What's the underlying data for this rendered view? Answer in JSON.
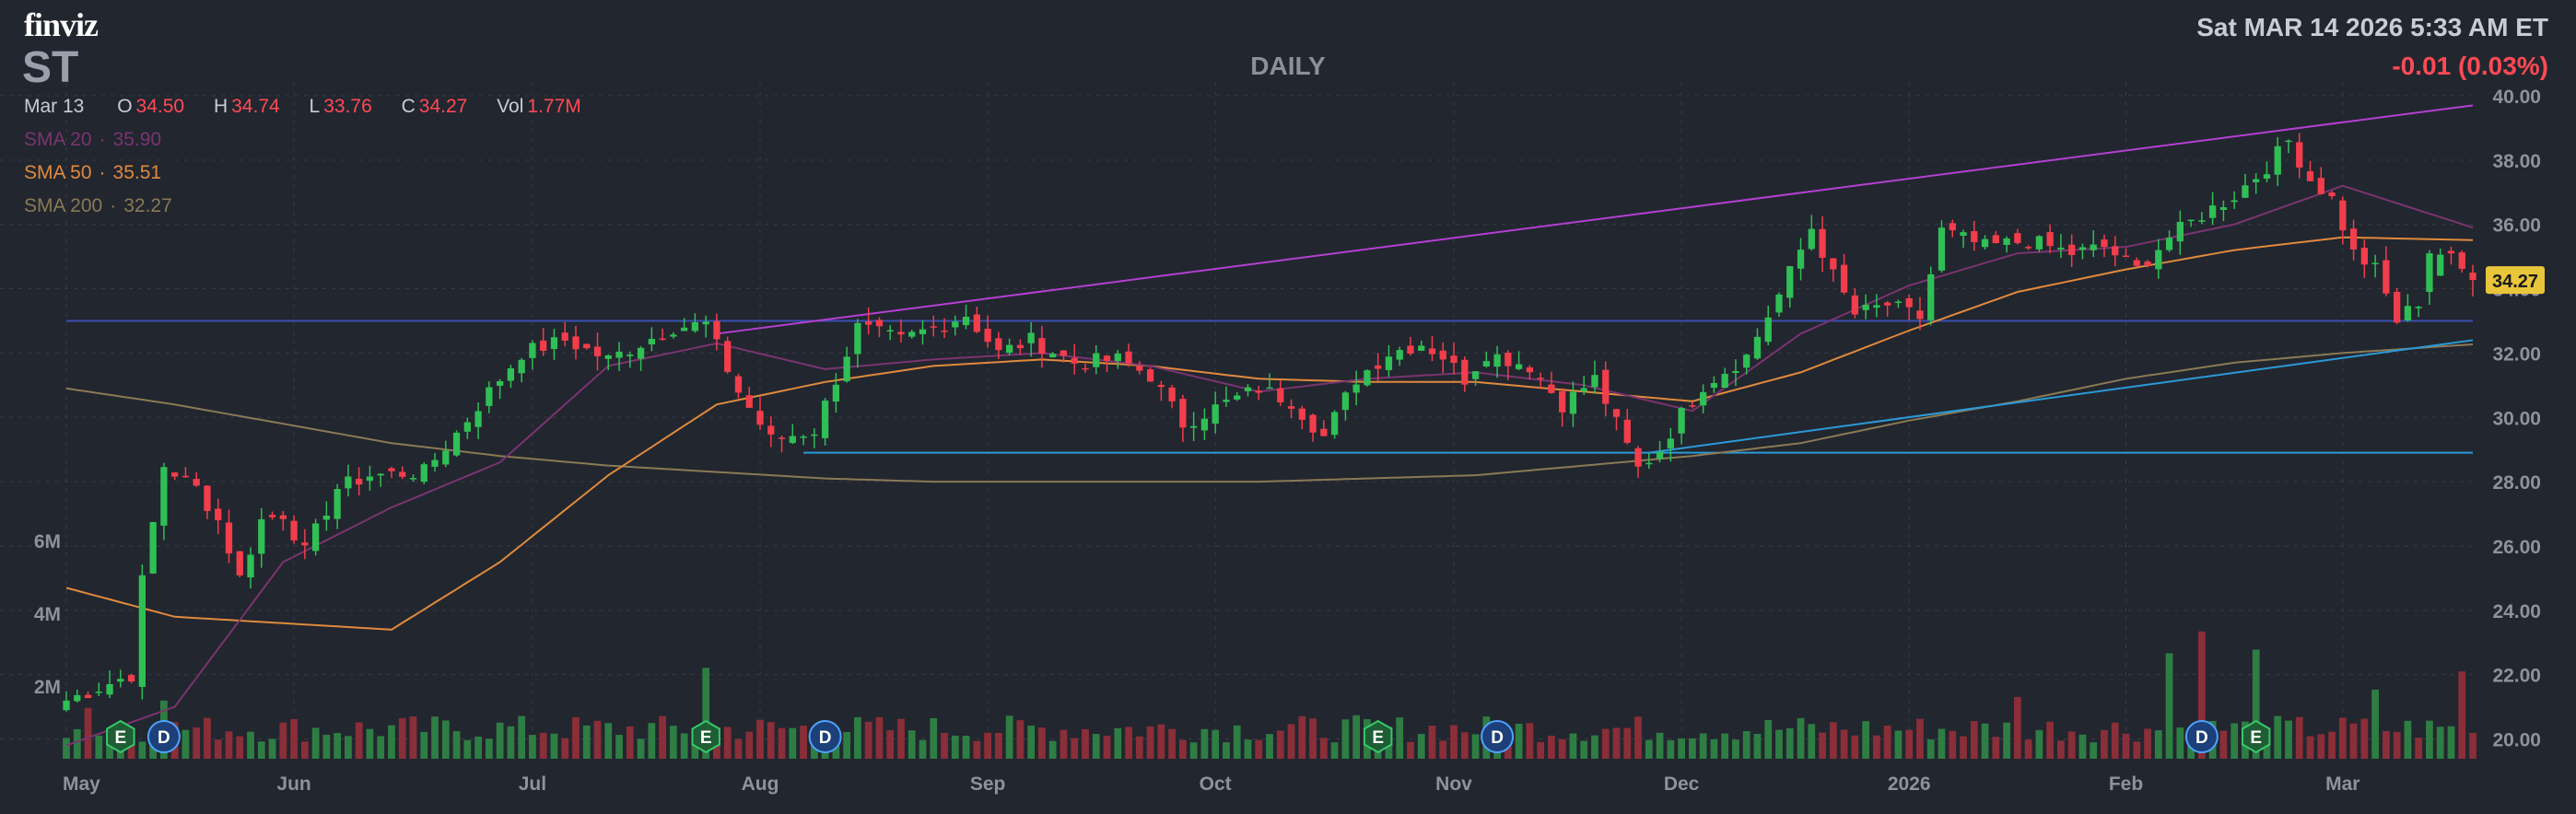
{
  "header": {
    "logo": "finviz",
    "ticker": "ST",
    "timeframe": "DAILY",
    "datetime": "Sat MAR 14 2026 5:33 AM ET",
    "change": "-0.01 (0.03%)",
    "ohlc": {
      "date": "Mar 13",
      "open_label": "O",
      "open": "34.50",
      "high_label": "H",
      "high": "34.74",
      "low_label": "L",
      "low": "33.76",
      "close_label": "C",
      "close": "34.27",
      "vol_label": "Vol",
      "vol": "1.77M"
    },
    "sma": [
      {
        "label": "SMA 20",
        "value": "35.90"
      },
      {
        "label": "SMA 50",
        "value": "35.51"
      },
      {
        "label": "SMA 200",
        "value": "32.27"
      }
    ]
  },
  "colors": {
    "background": "#22262f",
    "grid": "#363b46",
    "up": "#2fbf55",
    "down": "#f23d4b",
    "volume_up": "#2e7d43",
    "volume_down": "#8a2e38",
    "sma20": "#7a3470",
    "sma50": "#e08a3c",
    "sma200": "#8a7a55",
    "trend_upper": "#b43fd2",
    "trend_lower": "#2a9ad8",
    "horizontal_line": "#2a9ad8",
    "horizontal_line_dark": "#3a4fb0",
    "price_badge": "#e8c53a"
  },
  "chart_data": {
    "type": "candlestick",
    "y_axis": {
      "labels": [
        "40.00",
        "38.00",
        "36.00",
        "34.00",
        "32.00",
        "30.00",
        "28.00",
        "26.00",
        "24.00",
        "22.00",
        "20.00"
      ],
      "ylim": [
        19.7,
        40.2
      ],
      "side": "right"
    },
    "x_axis": {
      "labels": [
        "May",
        "Jun",
        "Jul",
        "Aug",
        "Sep",
        "Oct",
        "Nov",
        "Dec",
        "2026",
        "Feb",
        "Mar"
      ],
      "label_bar_index": [
        0,
        21,
        43,
        64,
        85,
        106,
        128,
        149,
        170,
        190,
        210
      ]
    },
    "volume_axis": {
      "labels": [
        "6M",
        "4M",
        "2M"
      ],
      "values": [
        6,
        4,
        2
      ],
      "unit": "M"
    },
    "last_price": "34.27",
    "sessions": 223,
    "price_path_anchors": [
      [
        0,
        21.2
      ],
      [
        6,
        22.0
      ],
      [
        7,
        24.9
      ],
      [
        9,
        28.5
      ],
      [
        12,
        27.8
      ],
      [
        14,
        26.8
      ],
      [
        16,
        25.0
      ],
      [
        18,
        26.8
      ],
      [
        20,
        27.0
      ],
      [
        22,
        25.8
      ],
      [
        25,
        27.8
      ],
      [
        28,
        28.2
      ],
      [
        33,
        28.3
      ],
      [
        36,
        29.5
      ],
      [
        39,
        30.8
      ],
      [
        42,
        32.0
      ],
      [
        46,
        32.4
      ],
      [
        50,
        31.8
      ],
      [
        53,
        32.3
      ],
      [
        56,
        32.8
      ],
      [
        59,
        32.9
      ],
      [
        62,
        30.8
      ],
      [
        65,
        29.3
      ],
      [
        69,
        29.6
      ],
      [
        71,
        31.2
      ],
      [
        73,
        32.8
      ],
      [
        77,
        32.4
      ],
      [
        80,
        32.8
      ],
      [
        83,
        33.2
      ],
      [
        86,
        32.0
      ],
      [
        89,
        32.4
      ],
      [
        93,
        31.7
      ],
      [
        97,
        31.8
      ],
      [
        100,
        31.3
      ],
      [
        103,
        29.8
      ],
      [
        106,
        30.3
      ],
      [
        110,
        30.9
      ],
      [
        113,
        30.5
      ],
      [
        116,
        29.4
      ],
      [
        119,
        31.2
      ],
      [
        122,
        32.0
      ],
      [
        125,
        32.3
      ],
      [
        127,
        31.9
      ],
      [
        129,
        31.2
      ],
      [
        131,
        32.0
      ],
      [
        135,
        31.6
      ],
      [
        138,
        30.4
      ],
      [
        141,
        31.2
      ],
      [
        143,
        29.8
      ],
      [
        145,
        28.4
      ],
      [
        147,
        29.0
      ],
      [
        149,
        30.1
      ],
      [
        151,
        31.0
      ],
      [
        155,
        31.9
      ],
      [
        158,
        33.8
      ],
      [
        161,
        35.9
      ],
      [
        163,
        34.4
      ],
      [
        165,
        33.2
      ],
      [
        168,
        33.5
      ],
      [
        171,
        33.1
      ],
      [
        173,
        35.8
      ],
      [
        177,
        35.3
      ],
      [
        181,
        35.5
      ],
      [
        185,
        35.1
      ],
      [
        188,
        35.3
      ],
      [
        191,
        34.6
      ],
      [
        194,
        35.6
      ],
      [
        197,
        36.3
      ],
      [
        200,
        36.9
      ],
      [
        203,
        37.8
      ],
      [
        205,
        38.6
      ],
      [
        207,
        37.4
      ],
      [
        209,
        36.8
      ],
      [
        211,
        35.1
      ],
      [
        213,
        34.6
      ],
      [
        215,
        33.0
      ],
      [
        217,
        33.6
      ],
      [
        219,
        35.1
      ],
      [
        220,
        34.9
      ],
      [
        222,
        34.27
      ]
    ],
    "candles_recent": [
      {
        "session": 218,
        "open": 33.9,
        "high": 35.2,
        "low": 33.5,
        "close": 35.1
      },
      {
        "session": 222,
        "open": 34.5,
        "high": 34.74,
        "low": 33.76,
        "close": 34.27
      }
    ],
    "sma20_anchors": [
      [
        0,
        19.8
      ],
      [
        10,
        21.0
      ],
      [
        20,
        25.5
      ],
      [
        30,
        27.2
      ],
      [
        40,
        28.6
      ],
      [
        50,
        31.6
      ],
      [
        60,
        32.3
      ],
      [
        70,
        31.5
      ],
      [
        80,
        31.8
      ],
      [
        90,
        32.0
      ],
      [
        100,
        31.6
      ],
      [
        110,
        30.8
      ],
      [
        120,
        31.2
      ],
      [
        130,
        31.4
      ],
      [
        140,
        31.0
      ],
      [
        150,
        30.2
      ],
      [
        160,
        32.6
      ],
      [
        170,
        34.1
      ],
      [
        180,
        35.1
      ],
      [
        190,
        35.3
      ],
      [
        200,
        36.0
      ],
      [
        210,
        37.2
      ],
      [
        222,
        35.9
      ]
    ],
    "sma50_anchors": [
      [
        0,
        24.7
      ],
      [
        10,
        23.8
      ],
      [
        20,
        23.6
      ],
      [
        30,
        23.4
      ],
      [
        40,
        25.5
      ],
      [
        50,
        28.2
      ],
      [
        60,
        30.4
      ],
      [
        70,
        31.1
      ],
      [
        80,
        31.6
      ],
      [
        90,
        31.8
      ],
      [
        100,
        31.6
      ],
      [
        110,
        31.2
      ],
      [
        120,
        31.1
      ],
      [
        130,
        31.1
      ],
      [
        140,
        30.8
      ],
      [
        150,
        30.5
      ],
      [
        160,
        31.4
      ],
      [
        170,
        32.7
      ],
      [
        180,
        33.9
      ],
      [
        190,
        34.6
      ],
      [
        200,
        35.2
      ],
      [
        210,
        35.6
      ],
      [
        222,
        35.51
      ]
    ],
    "sma200_anchors": [
      [
        0,
        30.9
      ],
      [
        10,
        30.4
      ],
      [
        20,
        29.8
      ],
      [
        30,
        29.2
      ],
      [
        40,
        28.8
      ],
      [
        50,
        28.5
      ],
      [
        60,
        28.3
      ],
      [
        70,
        28.1
      ],
      [
        80,
        28.0
      ],
      [
        90,
        28.0
      ],
      [
        100,
        28.0
      ],
      [
        110,
        28.0
      ],
      [
        120,
        28.1
      ],
      [
        130,
        28.2
      ],
      [
        140,
        28.5
      ],
      [
        150,
        28.8
      ],
      [
        160,
        29.2
      ],
      [
        170,
        29.9
      ],
      [
        180,
        30.5
      ],
      [
        190,
        31.2
      ],
      [
        200,
        31.7
      ],
      [
        210,
        32.0
      ],
      [
        222,
        32.27
      ]
    ],
    "trendlines": [
      {
        "role": "upper resistance",
        "from": [
          60,
          32.6
        ],
        "to": [
          222,
          39.7
        ]
      },
      {
        "role": "lower support",
        "from": [
          146,
          28.9
        ],
        "to": [
          222,
          32.4
        ]
      }
    ],
    "horizontal_lines": [
      {
        "price": 28.9,
        "from_session": 68,
        "to_session": 222
      },
      {
        "price": 33.0,
        "from_session": 0,
        "to_session": 222,
        "style": "dark"
      }
    ],
    "event_markers": [
      {
        "type": "E",
        "session": 5
      },
      {
        "type": "D",
        "session": 9
      },
      {
        "type": "E",
        "session": 59
      },
      {
        "type": "D",
        "session": 70
      },
      {
        "type": "E",
        "session": 121
      },
      {
        "type": "D",
        "session": 132
      },
      {
        "type": "D",
        "session": 197
      },
      {
        "type": "E",
        "session": 202
      }
    ],
    "volume_spikes_millions": [
      [
        2,
        1.4
      ],
      [
        9,
        1.6
      ],
      [
        59,
        2.5
      ],
      [
        180,
        1.7
      ],
      [
        194,
        2.9
      ],
      [
        197,
        3.5
      ],
      [
        202,
        3.0
      ],
      [
        213,
        1.9
      ],
      [
        221,
        2.4
      ]
    ]
  }
}
